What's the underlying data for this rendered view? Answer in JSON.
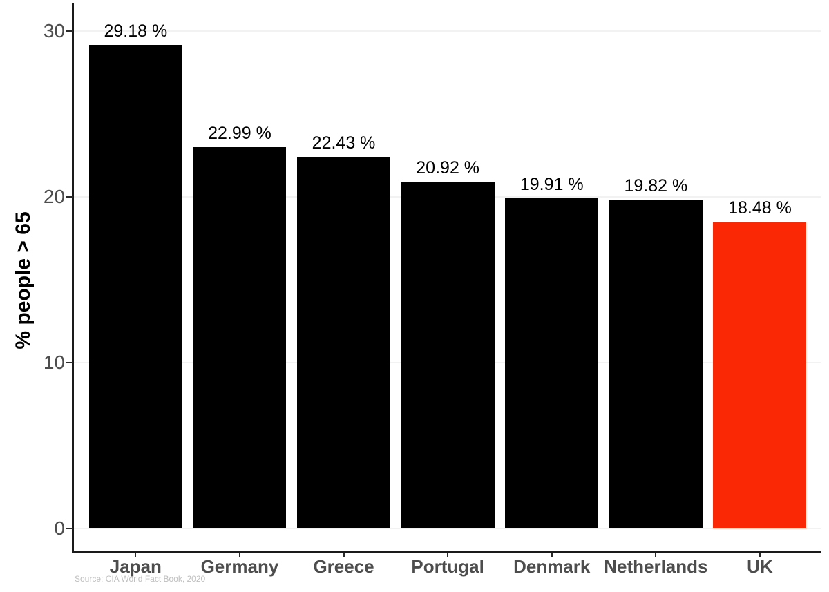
{
  "chart_data": {
    "type": "bar",
    "categories": [
      "Japan",
      "Germany",
      "Greece",
      "Portugal",
      "Denmark",
      "Netherlands",
      "UK"
    ],
    "values": [
      29.18,
      22.99,
      22.43,
      20.92,
      19.91,
      19.82,
      18.48
    ],
    "value_labels": [
      "29.18 %",
      "22.99 %",
      "22.43 %",
      "20.92 %",
      "19.91 %",
      "19.82 %",
      "18.48 %"
    ],
    "title": "",
    "xlabel": "",
    "ylabel": "% people > 65",
    "y_ticks": [
      0,
      10,
      20,
      30
    ],
    "y_tick_labels": [
      "0",
      "10",
      "20",
      "30"
    ],
    "ylim": [
      0,
      31.6
    ],
    "grid": "faint horizontal gridlines at y ticks",
    "legend": "none",
    "highlight_index": 6,
    "source_note": "Source: CIA World Fact Book, 2020"
  },
  "colors": {
    "bar": "#000000",
    "highlight_bar": "#fb2805",
    "axis_line": "#1a1a1a",
    "tick_mark": "#2a2a2a",
    "tick_label": "#4d4d4d",
    "category_label": "#4d4d4d",
    "value_label": "#000000",
    "gridline": "#f2f2f2",
    "source_text": "#bfbfbf",
    "background": "#ffffff"
  }
}
